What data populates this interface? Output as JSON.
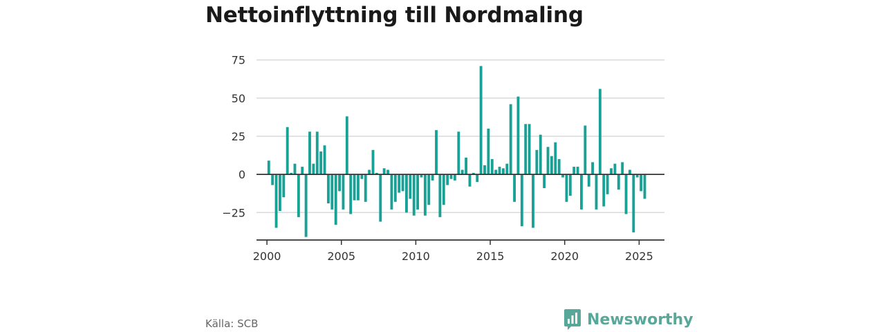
{
  "title": "Nettoinflyttning till Nordmaling",
  "source": "Källa: SCB",
  "brand": {
    "name": "Newsworthy",
    "icon": "newsworthy-logo-icon",
    "color": "#58a89a"
  },
  "colors": {
    "bar": "#1aa196",
    "grid": "#d9d9d9",
    "zero": "#333333"
  },
  "chart_data": {
    "type": "bar",
    "title": "Nettoinflyttning till Nordmaling",
    "xlabel": "",
    "ylabel": "",
    "ylim": [
      -43,
      78
    ],
    "xlim": [
      1999.3,
      2026.7
    ],
    "y_ticks": [
      -25,
      0,
      25,
      50,
      75
    ],
    "x_ticks": [
      2000,
      2005,
      2010,
      2015,
      2020,
      2025
    ],
    "grid": true,
    "frequency": "quarterly",
    "series": [
      {
        "start": "2000 Q1",
        "values": [
          9,
          -7,
          -35,
          -24,
          -15,
          31,
          1,
          7,
          -28,
          5,
          -41,
          28,
          7,
          28,
          15,
          19,
          -19,
          -23,
          -33,
          -11,
          -23,
          38,
          -26,
          -17,
          -17,
          -3,
          -18,
          3,
          16,
          1,
          -31,
          4,
          3,
          -23,
          -18,
          -12,
          -11,
          -25,
          -16,
          -27,
          -23,
          -2,
          -27,
          -20,
          -4,
          29,
          -28,
          -20,
          -7,
          -3,
          -4,
          28,
          3,
          11,
          -8,
          1,
          -5,
          71,
          6,
          30,
          10,
          3,
          5,
          4,
          7,
          46,
          -18,
          51,
          -34,
          33,
          33,
          -35,
          16,
          26,
          -9,
          18,
          12,
          21,
          10,
          -2,
          -18,
          -14,
          5,
          5,
          -23,
          32,
          -8,
          8,
          -23,
          56,
          -21,
          -13,
          4,
          7,
          -10,
          8,
          -26,
          3,
          -38,
          -2,
          -11,
          -16
        ]
      }
    ]
  }
}
